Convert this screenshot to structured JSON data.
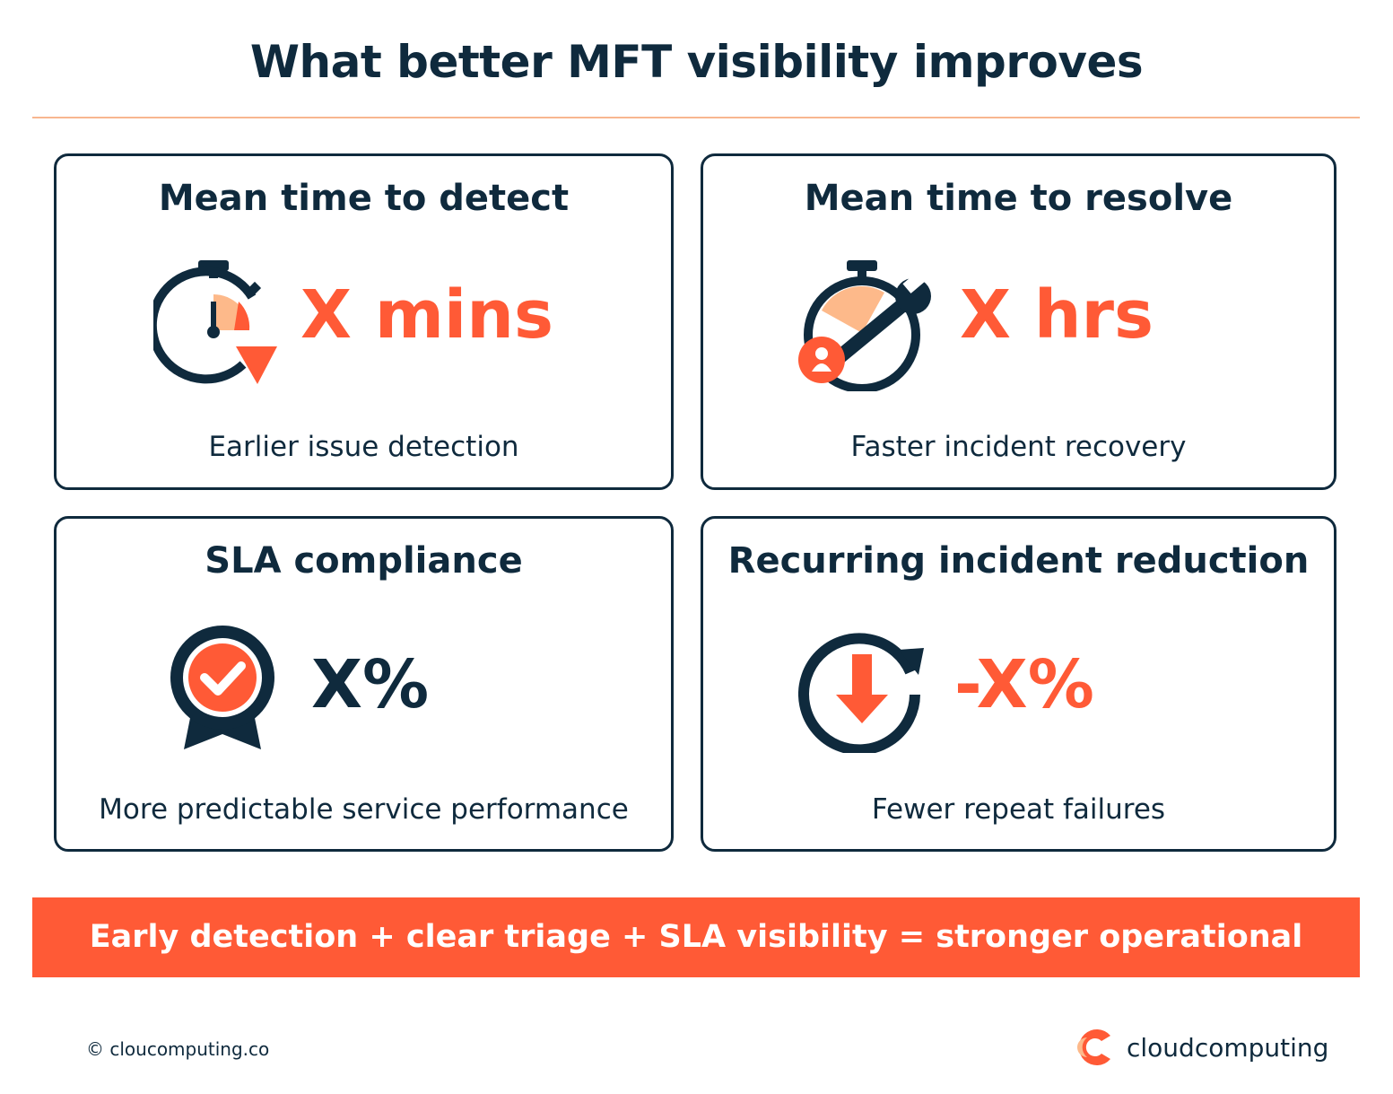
{
  "title": "What better MFT visibility improves",
  "cards": [
    {
      "title": "Mean time to detect",
      "value": "X mins",
      "subtitle": "Earlier issue detection",
      "icon": "stopwatch-down-icon"
    },
    {
      "title": "Mean time to resolve",
      "value": "X hrs",
      "subtitle": "Faster incident recovery",
      "icon": "stopwatch-wrench-icon"
    },
    {
      "title": "SLA compliance",
      "value": "X%",
      "subtitle": "More predictable service performance",
      "icon": "badge-check-icon"
    },
    {
      "title": "Recurring incident reduction",
      "value": "-X%",
      "subtitle": "Fewer repeat failures",
      "icon": "cycle-down-arrow-icon"
    }
  ],
  "banner": "Early detection + clear triage + SLA visibility = stronger operational control",
  "footer": {
    "copyright": "© cloucomputing.co",
    "logo_text": "cloudcomputing"
  },
  "colors": {
    "navy": "#0f2a3d",
    "orange": "#ff5a36",
    "peach": "#fdb98a"
  }
}
